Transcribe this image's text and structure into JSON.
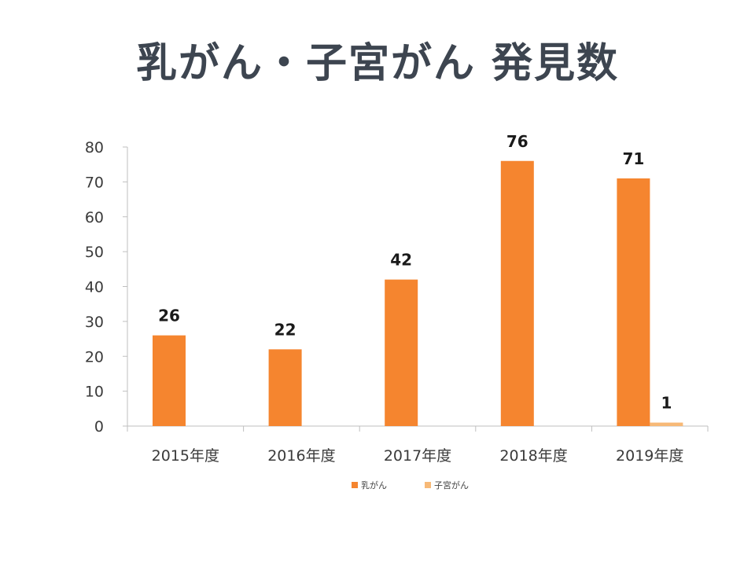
{
  "slide": {
    "title": "乳がん・子宮がん 発見数"
  },
  "chart_data": {
    "type": "bar",
    "title": "",
    "categories": [
      "2015年度",
      "2016年度",
      "2017年度",
      "2018年度",
      "2019年度"
    ],
    "series": [
      {
        "name": "乳がん",
        "color": "#f5852f",
        "values": [
          26,
          22,
          42,
          76,
          71
        ]
      },
      {
        "name": "子宮がん",
        "color": "#f7b977",
        "values": [
          null,
          null,
          null,
          null,
          1
        ]
      }
    ],
    "ylim": [
      0,
      80
    ],
    "yticks": [
      0,
      10,
      20,
      30,
      40,
      50,
      60,
      70,
      80
    ],
    "xlabel": "",
    "ylabel": "",
    "legend": "bottom",
    "grid": false
  }
}
